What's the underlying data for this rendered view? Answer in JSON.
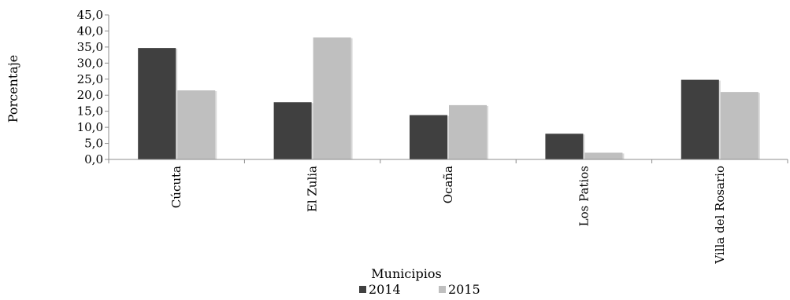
{
  "chart_data": {
    "type": "bar",
    "categories": [
      "Cúcuta",
      "El Zulia",
      "Ocaña",
      "Los Patios",
      "Villa del Rosario"
    ],
    "series": [
      {
        "name": "2014",
        "color": "#404040",
        "values": [
          34.7,
          17.8,
          13.8,
          8.0,
          24.8
        ]
      },
      {
        "name": "2015",
        "color": "#bfbfbf",
        "values": [
          21.5,
          38.0,
          16.9,
          2.1,
          21.0
        ]
      }
    ],
    "xlabel": "Municipios",
    "ylabel": "Porcentaje",
    "ylim": [
      0,
      45
    ],
    "yticks": [
      "0,0",
      "5,0",
      "10,0",
      "15,0",
      "20,0",
      "25,0",
      "30,0",
      "35,0",
      "40,0",
      "45,0"
    ],
    "legend_position": "bottom",
    "grid": false
  }
}
